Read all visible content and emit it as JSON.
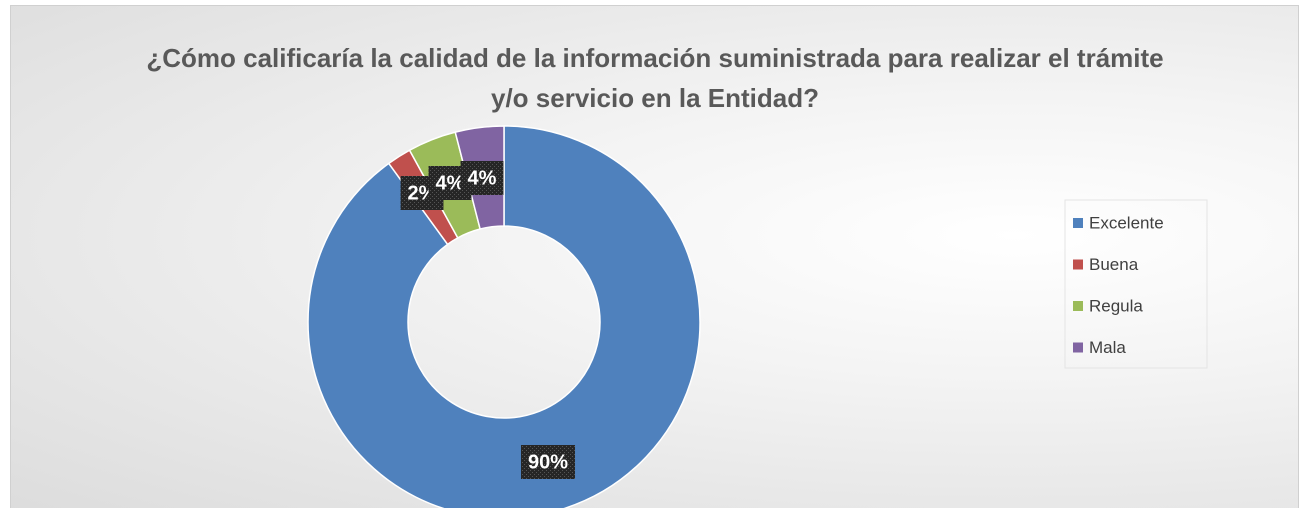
{
  "chart_data": {
    "type": "donut",
    "title": "¿Cómo calificaría la calidad de la información suministrada para realizar el trámite y/o servicio en la Entidad?",
    "categories": [
      "Excelente",
      "Buena",
      "Regula",
      "Mala"
    ],
    "values": [
      90,
      2,
      4,
      4
    ],
    "value_labels": [
      "90%",
      "2%",
      "4%",
      "4%"
    ],
    "colors": [
      "#4f81bd",
      "#c0504d",
      "#9bbb59",
      "#8064a2"
    ],
    "legend": "right"
  }
}
